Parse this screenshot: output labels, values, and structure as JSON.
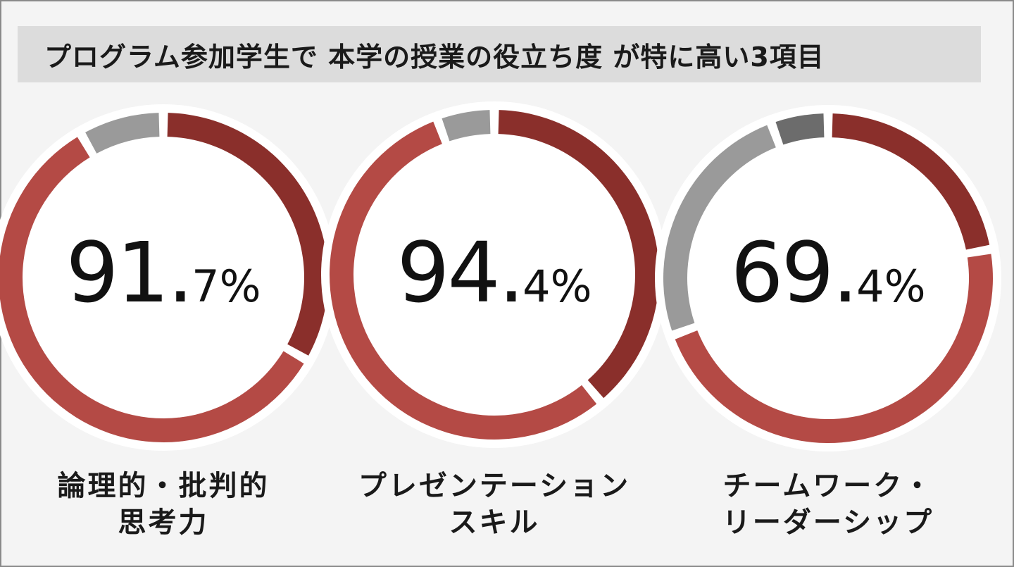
{
  "title": "プログラム参加学生で 本学の授業の役立ち度 が特に高い3項目",
  "colors": {
    "dark_red": "#8a2f2b",
    "light_red": "#b44a45",
    "light_gray": "#9a9a9a",
    "dark_gray": "#6c6c6c",
    "background": "#f4f4f4"
  },
  "chart_data": [
    {
      "type": "pie",
      "subtype": "donut",
      "label_line1": "論理的・批判的",
      "label_line2": "思考力",
      "value_big": "91.",
      "value_small": "7%",
      "slices": [
        {
          "value": 33.3,
          "color": "#8a2f2b"
        },
        {
          "value": 58.4,
          "color": "#b44a45"
        },
        {
          "value": 8.3,
          "color": "#9a9a9a"
        }
      ]
    },
    {
      "type": "pie",
      "subtype": "donut",
      "label_line1": "プレゼンテーション",
      "label_line2": "スキル",
      "value_big": "94.",
      "value_small": "4%",
      "slices": [
        {
          "value": 38.9,
          "color": "#8a2f2b"
        },
        {
          "value": 55.5,
          "color": "#b44a45"
        },
        {
          "value": 5.6,
          "color": "#9a9a9a"
        }
      ]
    },
    {
      "type": "pie",
      "subtype": "donut",
      "label_line1": "チームワーク・",
      "label_line2": "リーダーシップ",
      "value_big": "69.",
      "value_small": "4%",
      "slices": [
        {
          "value": 22.2,
          "color": "#8a2f2b"
        },
        {
          "value": 47.2,
          "color": "#b44a45"
        },
        {
          "value": 25.0,
          "color": "#9a9a9a"
        },
        {
          "value": 5.6,
          "color": "#6c6c6c"
        }
      ]
    }
  ]
}
